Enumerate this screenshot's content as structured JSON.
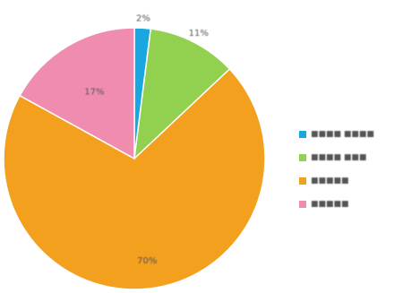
{
  "chart_data": {
    "type": "pie",
    "title": "",
    "slices": [
      {
        "label": "■■■■ ■■■■",
        "value": 2,
        "display": "2%",
        "color": "#1aa7e0"
      },
      {
        "label": "■■■■ ■■■",
        "value": 11,
        "display": "11%",
        "color": "#92d050"
      },
      {
        "label": "■■■■■",
        "value": 70,
        "display": "70%",
        "color": "#f2a01e"
      },
      {
        "label": "■■■■■",
        "value": 17,
        "display": "17%",
        "color": "#f08cb0"
      }
    ],
    "legend_position": "right"
  }
}
